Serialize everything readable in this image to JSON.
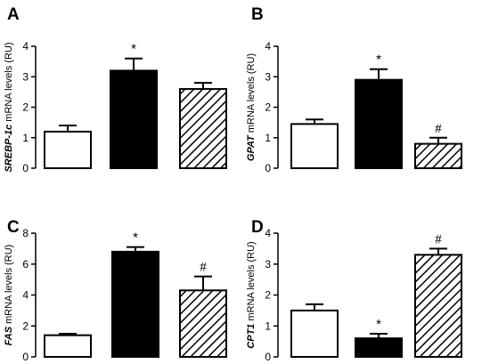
{
  "chart_data": [
    {
      "type": "bar",
      "panel": "A",
      "ylabel_gene": "SREBP-1c",
      "ylabel_rest": " mRNA levels (RU)",
      "ylim": [
        0,
        4
      ],
      "yticks": [
        0,
        1,
        2,
        3,
        4
      ],
      "values": [
        1.2,
        3.2,
        2.6
      ],
      "errors": [
        0.2,
        0.4,
        0.2
      ],
      "fills": [
        "white",
        "black",
        "hatch"
      ],
      "annotations": [
        "",
        "*",
        ""
      ]
    },
    {
      "type": "bar",
      "panel": "B",
      "ylabel_gene": "GPAT",
      "ylabel_rest": " mRNA levels (RU)",
      "ylim": [
        0,
        4
      ],
      "yticks": [
        0,
        1,
        2,
        3,
        4
      ],
      "values": [
        1.45,
        2.9,
        0.8
      ],
      "errors": [
        0.15,
        0.35,
        0.2
      ],
      "fills": [
        "white",
        "black",
        "hatch"
      ],
      "annotations": [
        "",
        "*",
        "#"
      ]
    },
    {
      "type": "bar",
      "panel": "C",
      "ylabel_gene": "FAS",
      "ylabel_rest": " mRNA levels (RU)",
      "ylim": [
        0,
        8
      ],
      "yticks": [
        0,
        2,
        4,
        6,
        8
      ],
      "values": [
        1.4,
        6.8,
        4.3
      ],
      "errors": [
        0.1,
        0.3,
        0.9
      ],
      "fills": [
        "white",
        "black",
        "hatch"
      ],
      "annotations": [
        "",
        "*",
        "#"
      ]
    },
    {
      "type": "bar",
      "panel": "D",
      "ylabel_gene": "CPT1",
      "ylabel_rest": " mRNA levels (RU)",
      "ylim": [
        0,
        4
      ],
      "yticks": [
        0,
        1,
        2,
        3,
        4
      ],
      "values": [
        1.5,
        0.6,
        3.3
      ],
      "errors": [
        0.2,
        0.15,
        0.2
      ],
      "fills": [
        "white",
        "black",
        "hatch"
      ],
      "annotations": [
        "",
        "*",
        "#"
      ]
    }
  ]
}
